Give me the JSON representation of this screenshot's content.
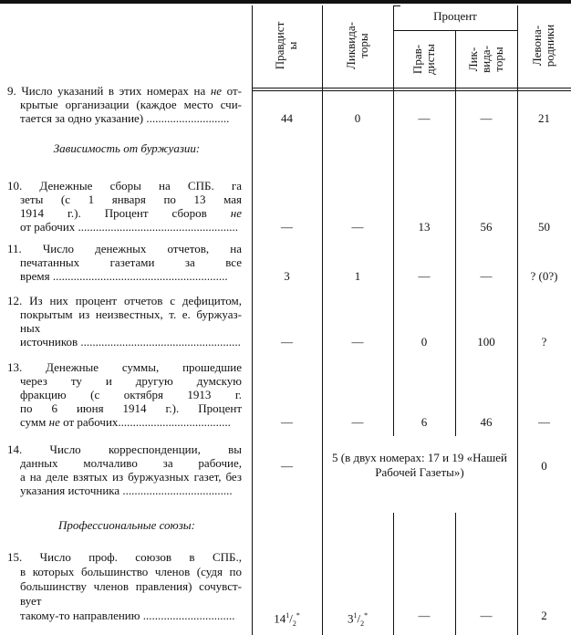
{
  "header": {
    "col_pravdisty": [
      "Правдист",
      "ы"
    ],
    "col_likvidatory": [
      "Ликвида-",
      "торы"
    ],
    "group_percent": "Процент",
    "col_pct_pravdisty": [
      "Прав-",
      "дисты"
    ],
    "col_pct_likvidatory": [
      "Лик-",
      "вида-",
      "торы"
    ],
    "col_levonarodniki": [
      "Левона-",
      "родники"
    ]
  },
  "sections": {
    "bourgeois": "Зависимость от буржуазии:",
    "unions": "Профессиональные союзы:"
  },
  "rows": [
    {
      "lines": [
        [
          {
            "t": "9. Число указаний в этих номерах на "
          },
          {
            "t": "не",
            "i": true
          },
          {
            "t": " от-"
          }
        ],
        [
          {
            "t": "крытые организации (каждое место счи-"
          }
        ],
        [
          {
            "t": "тается за одно указание) ............................"
          }
        ]
      ],
      "values": [
        "44",
        "0",
        "—",
        "—",
        "21"
      ]
    },
    {
      "lines": [
        [
          {
            "t": "10.   Денежные   сборы   на   СПБ.   га"
          }
        ],
        [
          {
            "t": "зеты  (с  1  января  по  13  мая"
          }
        ],
        [
          {
            "t": "1914 г.).   Процент   сборов   "
          },
          {
            "t": "не",
            "i": true
          }
        ],
        [
          {
            "t": "от рабочих ......................................................"
          }
        ]
      ],
      "values": [
        "—",
        "—",
        "13",
        "56",
        "50"
      ]
    },
    {
      "lines": [
        [
          {
            "t": "11.   Число   денежных   отчетов,   на"
          }
        ],
        [
          {
            "t": "печатанных   газетами   за   все"
          }
        ],
        [
          {
            "t": "время ..........................................................."
          }
        ]
      ],
      "values": [
        "3",
        "1",
        "—",
        "—",
        "? (0?)"
      ]
    },
    {
      "lines": [
        [
          {
            "t": "12. Из них процент отчетов с дефицитом,"
          }
        ],
        [
          {
            "t": "покрытым из неизвестных, т. е. буржуаз-"
          }
        ],
        [
          {
            "t": "ных"
          }
        ],
        [
          {
            "t": "источников ......................................................"
          }
        ]
      ],
      "values": [
        "—",
        "—",
        "0",
        "100",
        "?"
      ]
    },
    {
      "lines": [
        [
          {
            "t": "13.   Денежные   суммы,   прошедшие"
          }
        ],
        [
          {
            "t": "через   ту   и   другую   думскую"
          }
        ],
        [
          {
            "t": "фракцию   (с   октября   1913 г."
          }
        ],
        [
          {
            "t": "по   6   июня   1914 г.).   Процент"
          }
        ],
        [
          {
            "t": "сумм "
          },
          {
            "t": "не",
            "i": true
          },
          {
            "t": " от рабочих......................................"
          }
        ]
      ],
      "values": [
        "—",
        "—",
        "6",
        "46",
        "—"
      ]
    },
    {
      "lines": [
        [
          {
            "t": "14.   Число   корреспонденции,   вы"
          }
        ],
        [
          {
            "t": "данных   молчаливо   за   рабочие,"
          }
        ],
        [
          {
            "t": "а на деле взятых из буржуазных газет, без"
          }
        ],
        [
          {
            "t": "указания источника ....................................."
          }
        ]
      ],
      "values": [
        "—",
        "5 (в двух номерах: 17 и 19 «Нашей Рабочей Газеты»)",
        "0"
      ]
    },
    {
      "lines": [
        [
          {
            "t": "15.   Число   проф.   союзов   в   СПБ.,"
          }
        ],
        [
          {
            "t": "в которых большинство членов (судя по"
          }
        ],
        [
          {
            "t": "большинству членов правления) сочувст-"
          }
        ],
        [
          {
            "t": "вует"
          }
        ],
        [
          {
            "t": "такому-то направлению ..............................."
          }
        ]
      ],
      "values": [
        {
          "whole": "14",
          "num": "1",
          "den": "2",
          "mark": "*"
        },
        {
          "whole": "3",
          "num": "1",
          "den": "2",
          "mark": "*"
        },
        "—",
        "—",
        "2"
      ]
    }
  ]
}
